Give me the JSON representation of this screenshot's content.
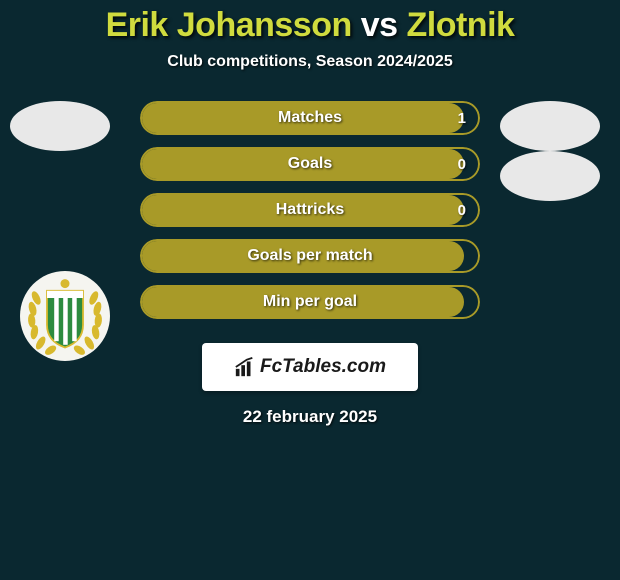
{
  "title": {
    "player1": "Erik Johansson",
    "vs": "vs",
    "player2": "Zlotnik"
  },
  "subtitle": "Club competitions, Season 2024/2025",
  "date": "22 february 2025",
  "colors": {
    "accent": "#a89a28",
    "accent_light": "#d0db3e",
    "bg": "#0a2830",
    "bar_border": "#a89a28",
    "bar_fill": "#a89a28",
    "white": "#ffffff"
  },
  "left_club_name": "Hammarby",
  "bars": [
    {
      "label": "Matches",
      "left_value": "",
      "right_value": "1",
      "fill_left_pct": 0,
      "fill_right_pct": 96
    },
    {
      "label": "Goals",
      "left_value": "",
      "right_value": "0",
      "fill_left_pct": 0,
      "fill_right_pct": 96
    },
    {
      "label": "Hattricks",
      "left_value": "",
      "right_value": "0",
      "fill_left_pct": 0,
      "fill_right_pct": 96
    },
    {
      "label": "Goals per match",
      "left_value": "",
      "right_value": "",
      "fill_left_pct": 0,
      "fill_right_pct": 96
    },
    {
      "label": "Min per goal",
      "left_value": "",
      "right_value": "",
      "fill_left_pct": 0,
      "fill_right_pct": 96
    }
  ],
  "branding": "FcTables.com"
}
